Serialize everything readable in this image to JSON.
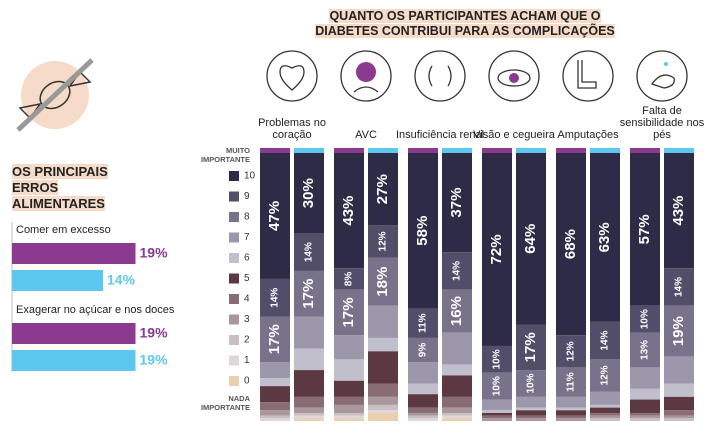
{
  "chart_data": [
    {
      "type": "hbar",
      "title": "OS PRINCIPAIS ERROS ALIMENTARES",
      "categories": [
        "Comer em excesso",
        "Exagerar no açúcar e nos doces"
      ],
      "series": [
        {
          "color": "#8b3a8f",
          "values": [
            19,
            19
          ],
          "value_labels": [
            "19%",
            "19%"
          ]
        },
        {
          "color": "#5cc8f0",
          "values": [
            14,
            19
          ],
          "value_labels": [
            "14%",
            "19%"
          ]
        }
      ]
    },
    {
      "type": "stacked_bar",
      "title": "QUANTO OS PARTICIPANTES ACHAM QUE O DIABETES CONTRIBUI PARA AS COMPLICAÇÕES",
      "categories": [
        "Problemas no coração",
        null,
        "AVC",
        null,
        "Insuficiência renal",
        null,
        "Visão e cegueira",
        null,
        "Amputações",
        null,
        "Falta de sensibilidade nos pés",
        null
      ],
      "group_colors": [
        "#8b3a8f",
        "#5cc8f0"
      ],
      "scale_top_label": "MUITO IMPORTANTE",
      "scale_bottom_label": "NADA IMPORTANTE",
      "ylim": [
        0,
        100
      ],
      "series": [
        {
          "name": "10",
          "color": "#2e2b46",
          "values": [
            47,
            30,
            43,
            27,
            58,
            37,
            72,
            64,
            68,
            63,
            57,
            43
          ],
          "value_labels": [
            "47%",
            "30%",
            "43%",
            "27%",
            "58%",
            "37%",
            "72%",
            "64%",
            "68%",
            "63%",
            "57%",
            "43%"
          ]
        },
        {
          "name": "9",
          "color": "#524d69",
          "values": [
            14,
            14,
            8,
            12,
            11,
            14,
            10,
            17,
            12,
            14,
            10,
            14
          ],
          "value_labels": [
            "14%",
            "14%",
            "8%",
            "12%",
            "11%",
            "14%",
            "10%",
            "17%",
            "12%",
            "14%",
            "10%",
            "14%"
          ]
        },
        {
          "name": "8",
          "color": "#78738b",
          "values": [
            17,
            17,
            17,
            18,
            9,
            16,
            10,
            10,
            11,
            12,
            13,
            19
          ],
          "value_labels": [
            "17%",
            "17%",
            "17%",
            "18%",
            "9%",
            "16%",
            "10%",
            "10%",
            "11%",
            "12%",
            "13%",
            "19%"
          ]
        },
        {
          "name": "7",
          "color": "#9c97aa",
          "values": [
            6,
            12,
            9,
            12,
            8,
            12,
            4,
            4,
            4,
            5,
            8,
            10
          ]
        },
        {
          "name": "6",
          "color": "#c2bfcc",
          "values": [
            3,
            8,
            8,
            5,
            4,
            4,
            1,
            1,
            1,
            1,
            4,
            5
          ]
        },
        {
          "name": "5",
          "color": "#5c3942",
          "values": [
            6,
            10,
            6,
            12,
            5,
            8,
            1,
            2,
            2,
            2,
            5,
            5
          ]
        },
        {
          "name": "4",
          "color": "#8a6d74",
          "values": [
            3,
            4,
            3,
            5,
            2,
            4,
            1,
            1,
            1,
            1,
            1,
            2
          ]
        },
        {
          "name": "3",
          "color": "#a9979c",
          "values": [
            2,
            2,
            3,
            3,
            1,
            2,
            1,
            1,
            1,
            1,
            1,
            1
          ]
        },
        {
          "name": "2",
          "color": "#c9bec2",
          "values": [
            1,
            1,
            1,
            2,
            1,
            1,
            0,
            0,
            0,
            1,
            1,
            1
          ]
        },
        {
          "name": "1",
          "color": "#ddd7d9",
          "values": [
            1,
            1,
            1,
            1,
            1,
            1,
            0,
            0,
            0,
            0,
            0,
            0
          ]
        },
        {
          "name": "0",
          "color": "#ebcfae",
          "values": [
            0,
            1,
            1,
            3,
            0,
            1,
            0,
            0,
            0,
            0,
            0,
            0
          ]
        }
      ]
    }
  ]
}
